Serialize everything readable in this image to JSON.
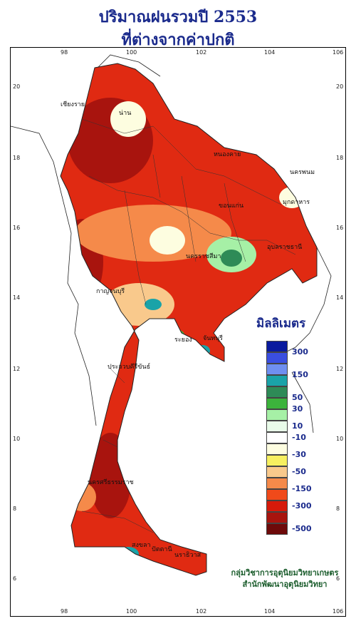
{
  "title": {
    "line1": "ปริมาณฝนรวมปี  2553",
    "line2": "ที่ต่างจากค่าปกติ"
  },
  "axes": {
    "lon_ticks": [
      "98",
      "100",
      "102",
      "104",
      "106"
    ],
    "lat_ticks": [
      "20",
      "18",
      "16",
      "14",
      "12",
      "10",
      "8",
      "6"
    ]
  },
  "legend": {
    "unit": "มิลลิเมตร",
    "labels": [
      "300",
      "150",
      "50",
      "30",
      "10",
      "-10",
      "-30",
      "-50",
      "-150",
      "-300",
      "-500"
    ],
    "colors": [
      "#0a1a9e",
      "#3a4ee0",
      "#6f8ff0",
      "#1aa3a8",
      "#2e8b57",
      "#3cb33c",
      "#a6f0a6",
      "#e9fbe9",
      "#ffffff",
      "#fdfde0",
      "#f7f060",
      "#f9c98c",
      "#f58a4a",
      "#f04a1a",
      "#d61a0a",
      "#a8140e",
      "#6e0a0a"
    ]
  },
  "places": [
    {
      "name": "เชียงราย"
    },
    {
      "name": "น่าน"
    },
    {
      "name": "หนองคาย"
    },
    {
      "name": "นครพนม"
    },
    {
      "name": "มุกดาหาร"
    },
    {
      "name": "ขอนแก่น"
    },
    {
      "name": "นครราชสีมา"
    },
    {
      "name": "อุบลราชธานี"
    },
    {
      "name": "กาญจนบุรี"
    },
    {
      "name": "ระยอง"
    },
    {
      "name": "จันทบุรี"
    },
    {
      "name": "ประจวบคีรีขันธ์"
    },
    {
      "name": "นครศรีธรรมราช"
    },
    {
      "name": "สงขลา"
    },
    {
      "name": "ปัตตานี"
    },
    {
      "name": "นราธิวาส"
    }
  ],
  "credit": {
    "line1": "กลุ่มวิชาการอุตุนิยมวิทยาเกษตร",
    "line2": "สำนักพัฒนาอุตุนิยมวิทยา"
  }
}
